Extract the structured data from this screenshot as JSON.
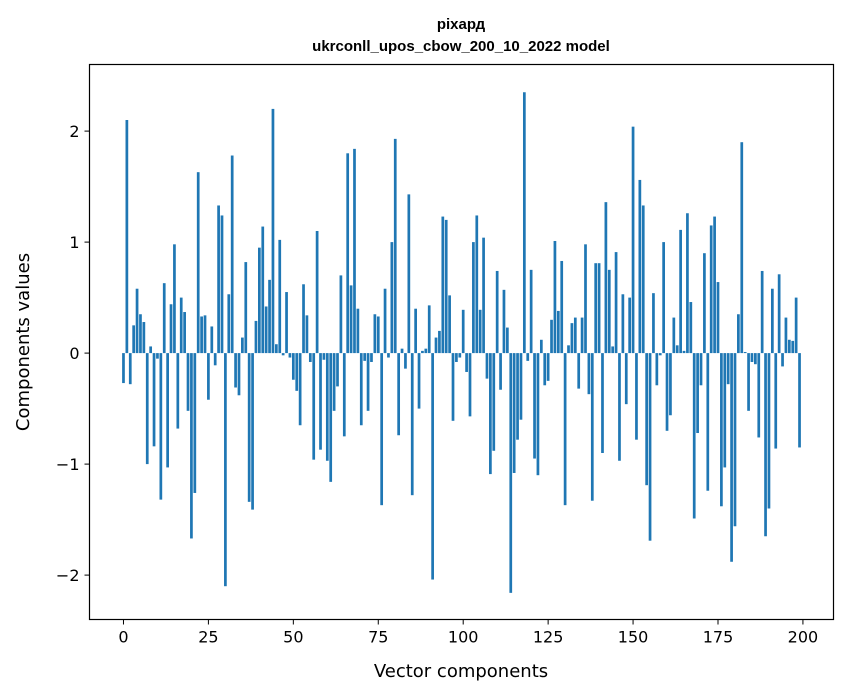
{
  "chart_data": {
    "type": "bar",
    "title": "ріхард",
    "subtitle": "ukrconll_upos_cbow_200_10_2022 model",
    "xlabel": "Vector components",
    "ylabel": "Components values",
    "xlim": [
      -10,
      209
    ],
    "ylim": [
      -2.4,
      2.6
    ],
    "x_ticks": [
      0,
      25,
      50,
      75,
      100,
      125,
      150,
      175,
      200
    ],
    "y_ticks": [
      -2,
      -1,
      0,
      1,
      2
    ],
    "y_tick_labels": [
      "−2",
      "−1",
      "0",
      "1",
      "2"
    ],
    "grid": false,
    "bar_color": "#1f77b4",
    "x": [
      0,
      1,
      2,
      3,
      4,
      5,
      6,
      7,
      8,
      9,
      10,
      11,
      12,
      13,
      14,
      15,
      16,
      17,
      18,
      19,
      20,
      21,
      22,
      23,
      24,
      25,
      26,
      27,
      28,
      29,
      30,
      31,
      32,
      33,
      34,
      35,
      36,
      37,
      38,
      39,
      40,
      41,
      42,
      43,
      44,
      45,
      46,
      47,
      48,
      49,
      50,
      51,
      52,
      53,
      54,
      55,
      56,
      57,
      58,
      59,
      60,
      61,
      62,
      63,
      64,
      65,
      66,
      67,
      68,
      69,
      70,
      71,
      72,
      73,
      74,
      75,
      76,
      77,
      78,
      79,
      80,
      81,
      82,
      83,
      84,
      85,
      86,
      87,
      88,
      89,
      90,
      91,
      92,
      93,
      94,
      95,
      96,
      97,
      98,
      99,
      100,
      101,
      102,
      103,
      104,
      105,
      106,
      107,
      108,
      109,
      110,
      111,
      112,
      113,
      114,
      115,
      116,
      117,
      118,
      119,
      120,
      121,
      122,
      123,
      124,
      125,
      126,
      127,
      128,
      129,
      130,
      131,
      132,
      133,
      134,
      135,
      136,
      137,
      138,
      139,
      140,
      141,
      142,
      143,
      144,
      145,
      146,
      147,
      148,
      149,
      150,
      151,
      152,
      153,
      154,
      155,
      156,
      157,
      158,
      159,
      160,
      161,
      162,
      163,
      164,
      165,
      166,
      167,
      168,
      169,
      170,
      171,
      172,
      173,
      174,
      175,
      176,
      177,
      178,
      179,
      180,
      181,
      182,
      183,
      184,
      185,
      186,
      187,
      188,
      189,
      190,
      191,
      192,
      193,
      194,
      195,
      196,
      197,
      198,
      199
    ],
    "values": [
      -0.27,
      2.1,
      -0.28,
      0.25,
      0.58,
      0.35,
      0.28,
      -1.0,
      0.06,
      -0.84,
      -0.05,
      -1.32,
      0.63,
      -1.03,
      0.44,
      0.98,
      -0.68,
      0.5,
      0.37,
      -0.52,
      -1.67,
      -1.26,
      1.63,
      0.33,
      0.34,
      -0.42,
      0.24,
      -0.11,
      1.33,
      1.24,
      -2.1,
      0.53,
      1.78,
      -0.31,
      -0.38,
      0.14,
      0.82,
      -1.34,
      -1.41,
      0.29,
      0.95,
      1.14,
      0.42,
      0.66,
      2.2,
      0.08,
      1.02,
      -0.02,
      0.55,
      -0.04,
      -0.24,
      -0.34,
      -0.65,
      0.62,
      0.34,
      -0.08,
      -0.96,
      1.1,
      -0.87,
      -0.06,
      -0.97,
      -1.16,
      -0.52,
      -0.3,
      0.7,
      -0.75,
      1.8,
      0.61,
      1.84,
      0.4,
      -0.65,
      -0.07,
      -0.52,
      -0.08,
      0.35,
      0.33,
      -1.37,
      0.58,
      -0.04,
      1.0,
      1.93,
      -0.74,
      0.04,
      -0.14,
      1.43,
      -1.28,
      0.4,
      -0.5,
      0.02,
      0.04,
      0.43,
      -2.04,
      0.14,
      0.2,
      1.23,
      1.2,
      0.52,
      -0.61,
      -0.08,
      -0.04,
      0.39,
      -0.17,
      -0.57,
      1.0,
      1.24,
      0.39,
      1.04,
      -0.23,
      -1.09,
      -0.88,
      0.74,
      -0.33,
      0.57,
      0.23,
      -2.16,
      -1.08,
      -0.78,
      -0.6,
      2.35,
      -0.07,
      0.75,
      -0.95,
      -1.1,
      0.12,
      -0.29,
      -0.25,
      0.3,
      1.01,
      0.38,
      0.83,
      -1.37,
      0.07,
      0.27,
      0.32,
      -0.32,
      0.32,
      0.98,
      -0.37,
      -1.33,
      0.81,
      0.81,
      -0.9,
      1.36,
      0.75,
      0.06,
      0.91,
      -0.97,
      0.53,
      -0.46,
      0.5,
      2.04,
      -0.78,
      1.56,
      1.33,
      -1.19,
      -1.69,
      0.54,
      -0.29,
      -0.02,
      1.0,
      -0.7,
      -0.56,
      0.32,
      0.07,
      1.11,
      0.02,
      1.26,
      0.46,
      -1.49,
      -0.72,
      -0.29,
      0.9,
      -1.24,
      1.15,
      1.23,
      0.64,
      -1.38,
      -1.03,
      -0.28,
      -1.88,
      -1.56,
      0.35,
      1.9,
      0.01,
      -0.52,
      -0.08,
      -0.1,
      -0.76,
      0.74,
      -1.65,
      -1.4,
      0.58,
      -0.86,
      0.71,
      -0.12,
      0.32,
      0.12,
      0.11,
      0.5,
      -0.85
    ]
  }
}
